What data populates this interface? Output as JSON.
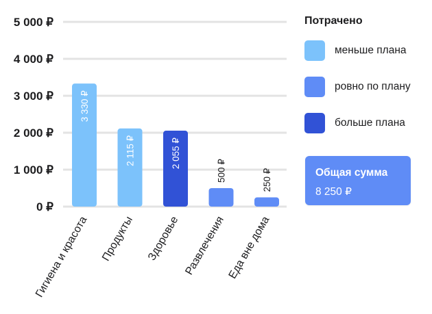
{
  "chart_data": {
    "type": "bar",
    "categories": [
      "Гигиена и красота",
      "Продукты",
      "Здоровье",
      "Развлечения",
      "Еда вне дома"
    ],
    "values": [
      3330,
      2115,
      2055,
      500,
      250
    ],
    "value_labels": [
      "3 330 ₽",
      "2 115 ₽",
      "2 055 ₽",
      "500 ₽",
      "250 ₽"
    ],
    "status": [
      "less",
      "less",
      "more",
      "exact",
      "exact"
    ],
    "ylim": [
      0,
      5000
    ],
    "yticks": [
      0,
      1000,
      2000,
      3000,
      4000,
      5000
    ],
    "ytick_labels": [
      "0 ₽",
      "1 000 ₽",
      "2 000 ₽",
      "3 000 ₽",
      "4 000 ₽",
      "5 000 ₽"
    ],
    "grid": true,
    "legend_placement": "right"
  },
  "colors": {
    "less": "#7cc2fb",
    "exact": "#5f8cf6",
    "more": "#3152d6",
    "grid": "#e3e3e3",
    "text": "#1c1c1e"
  },
  "legend": {
    "title": "Потрачено",
    "items": [
      {
        "key": "less",
        "label": "меньше плана"
      },
      {
        "key": "exact",
        "label": "ровно по плану"
      },
      {
        "key": "more",
        "label": "больше плана"
      }
    ]
  },
  "total": {
    "label": "Общая сумма",
    "value": "8 250 ₽"
  }
}
